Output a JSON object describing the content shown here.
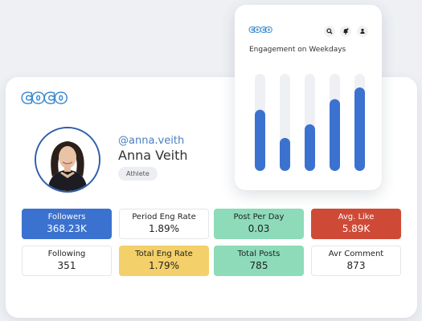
{
  "brand": {
    "logo_text": "coco"
  },
  "profile": {
    "handle": "@anna.veith",
    "name": "Anna Veith",
    "tag": "Athlete"
  },
  "stats": {
    "followers": {
      "label": "Followers",
      "value": "368.23K"
    },
    "period_eng_rate": {
      "label": "Period Eng Rate",
      "value": "1.89%"
    },
    "post_per_day": {
      "label": "Post Per Day",
      "value": "0.03"
    },
    "avg_like": {
      "label": "Avg. Like",
      "value": "5.89K"
    },
    "following": {
      "label": "Following",
      "value": "351"
    },
    "total_eng_rate": {
      "label": "Total Eng Rate",
      "value": "1.79%"
    },
    "total_posts": {
      "label": "Total Posts",
      "value": "785"
    },
    "avr_comment": {
      "label": "Avr Comment",
      "value": "873"
    }
  },
  "colors": {
    "accent_blue": "#3b72cf",
    "mint": "#8ddbb9",
    "red": "#cf4a36",
    "yellow": "#f3d06a",
    "bar_fill": "#3b72cf",
    "bar_track": "#eef0f4"
  },
  "engagement_widget": {
    "logo_text": "coco",
    "icons": [
      "search-icon",
      "bell-icon",
      "user-icon"
    ],
    "chart_data": {
      "type": "bar",
      "title": "Engagement on Weekdays",
      "categories": [
        "",
        "",
        "",
        "",
        ""
      ],
      "values": [
        63,
        34,
        48,
        74,
        86
      ],
      "ylim": [
        0,
        100
      ],
      "grid": false,
      "legend": "none"
    }
  }
}
